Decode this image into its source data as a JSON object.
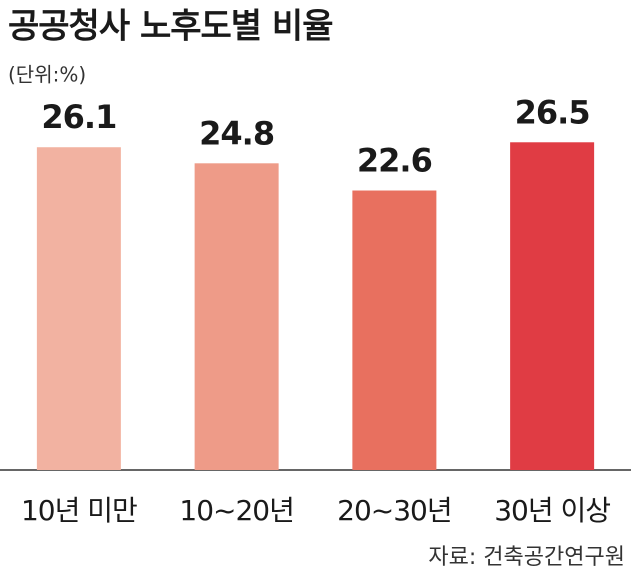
{
  "chart_data": {
    "type": "bar",
    "title": "공공청사 노후도별 비율",
    "unit": "(단위:%)",
    "categories": [
      "10년 미만",
      "10~20년",
      "20~30년",
      "30년 이상"
    ],
    "values": [
      26.1,
      24.8,
      22.6,
      26.5
    ],
    "colors": [
      "#f2b2a1",
      "#ee9b88",
      "#e8705f",
      "#e03c44"
    ],
    "ylim": [
      0,
      30
    ],
    "source": "자료: 건축공간연구원"
  }
}
